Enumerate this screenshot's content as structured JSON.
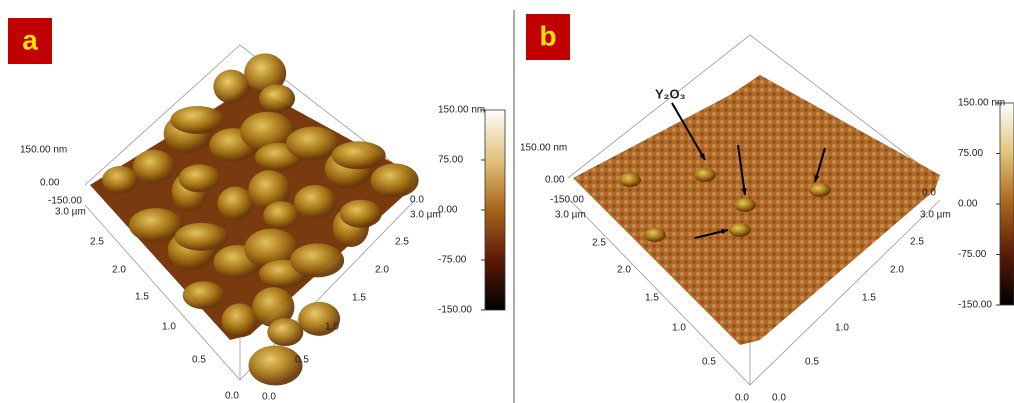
{
  "panels": [
    {
      "label": "a",
      "z_axis": [
        "150.00 nm",
        "0.00",
        "-150.00"
      ],
      "y_axis": [
        "3.0 µm",
        "2.5",
        "2.0",
        "1.5",
        "1.0",
        "0.5",
        "0.0"
      ],
      "x_axis": [
        "0.0",
        "3.0 µm",
        "2.5",
        "2.0",
        "1.5",
        "1.0",
        "0.5",
        "0.0"
      ],
      "colorbar": [
        "150.00 nm",
        "75.00",
        "0.00",
        "-75.00",
        "-150.00"
      ]
    },
    {
      "label": "b",
      "annotation": "Y₂O₃",
      "z_axis": [
        "150.00 nm",
        "0.00",
        "-150.00"
      ],
      "y_axis": [
        "3.0 µm",
        "2.5",
        "2.0",
        "1.5",
        "1.0",
        "0.5",
        "0.0"
      ],
      "x_axis": [
        "0.0",
        "3.0 µm",
        "2.5",
        "2.0",
        "1.5",
        "1.0",
        "0.5",
        "0.0"
      ],
      "colorbar": [
        "150.00 nm",
        "75.00",
        "0.00",
        "-75.00",
        "-150.00"
      ]
    }
  ]
}
